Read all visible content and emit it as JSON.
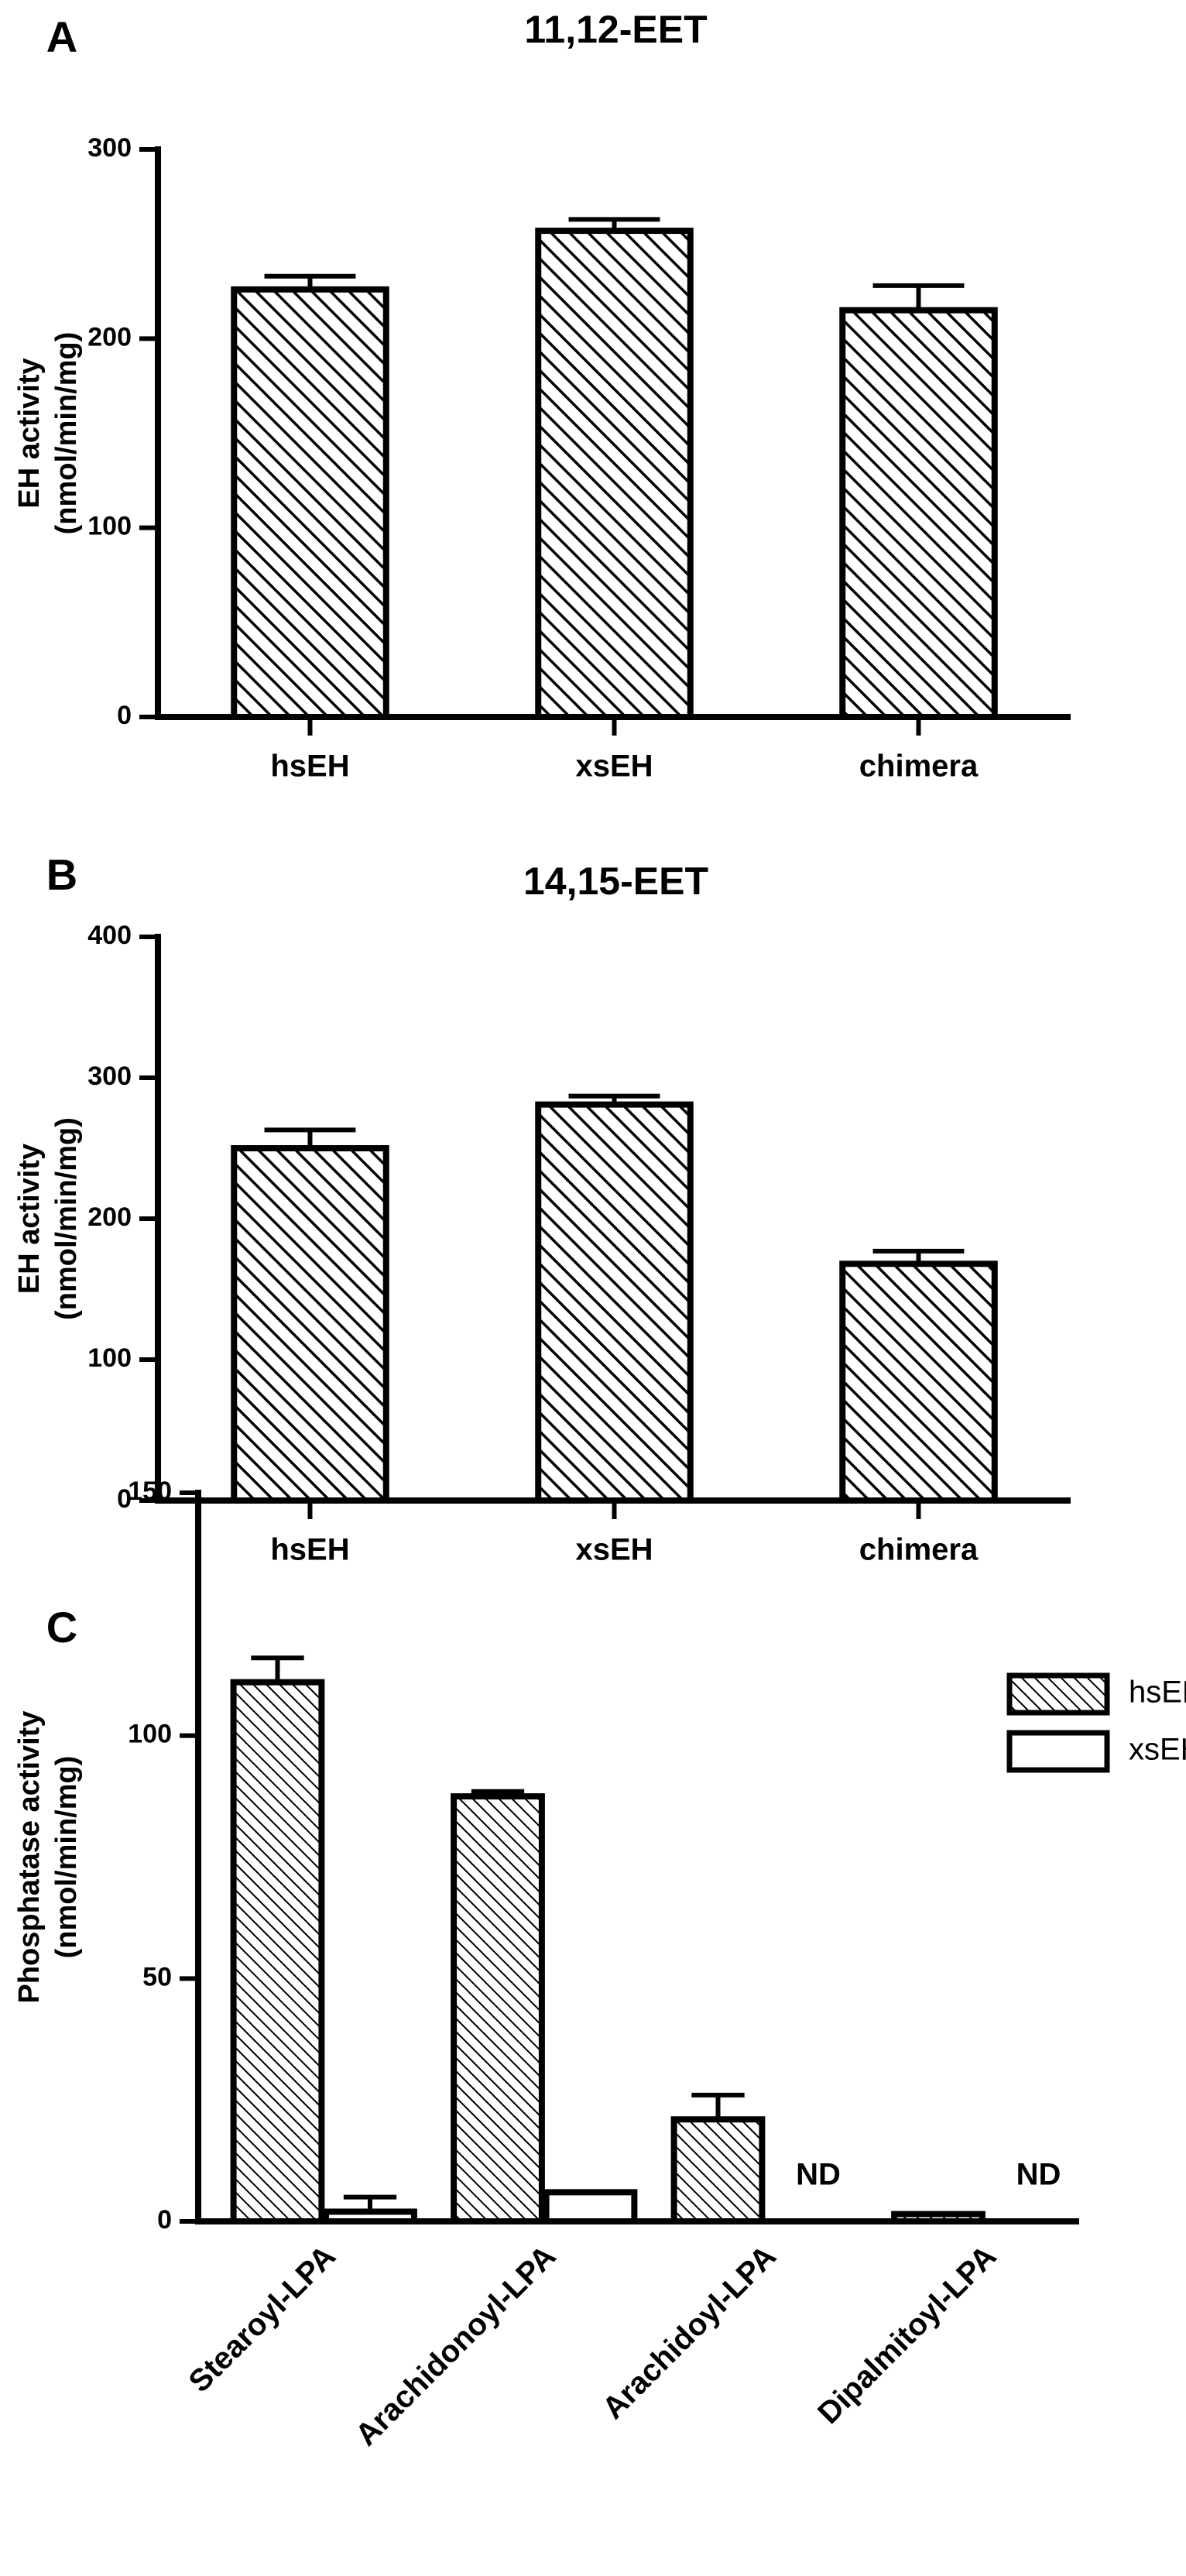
{
  "chart_data": [
    {
      "type": "bar",
      "panel_label": "A",
      "title": "11,12-EET",
      "ylabel": [
        "EH activity",
        "(nmol/min/mg)"
      ],
      "categories": [
        "hsEH",
        "xsEH",
        "chimera"
      ],
      "values": [
        226,
        257,
        215
      ],
      "errors": [
        7,
        6,
        13
      ],
      "hatch": true,
      "color": "#000000",
      "ylim": [
        0,
        300
      ],
      "yticks": [
        0,
        100,
        200,
        300
      ]
    },
    {
      "type": "bar",
      "panel_label": "B",
      "title": "14,15-EET",
      "ylabel": [
        "EH activity",
        "(nmol/min/mg)"
      ],
      "categories": [
        "hsEH",
        "xsEH",
        "chimera"
      ],
      "values": [
        250,
        281,
        168
      ],
      "errors": [
        13,
        6,
        9
      ],
      "hatch": true,
      "color": "#000000",
      "ylim": [
        0,
        400
      ],
      "yticks": [
        0,
        100,
        200,
        300,
        400
      ]
    },
    {
      "type": "bar",
      "panel_label": "C",
      "ylabel": [
        "Phosphatase activity",
        "(nmol/min/mg)"
      ],
      "categories": [
        "Stearoyl-LPA",
        "Arachidonoyl-LPA",
        "Arachidoyl-LPA",
        "Dipalmitoyl-LPA"
      ],
      "series": [
        {
          "name": "hsEH",
          "hatch": true,
          "color": "#000000",
          "values": [
            111,
            87.5,
            21,
            1.5
          ],
          "errors": [
            5,
            1,
            5,
            0
          ]
        },
        {
          "name": "xsEH",
          "hatch": false,
          "color": "#000000",
          "values": [
            2,
            6,
            null,
            null
          ],
          "errors": [
            3,
            0,
            null,
            null
          ],
          "value_labels": [
            null,
            null,
            "ND",
            "ND"
          ]
        }
      ],
      "legend": "upper right",
      "ylim": [
        0,
        150
      ],
      "yticks": [
        0,
        50,
        100,
        150
      ]
    }
  ]
}
